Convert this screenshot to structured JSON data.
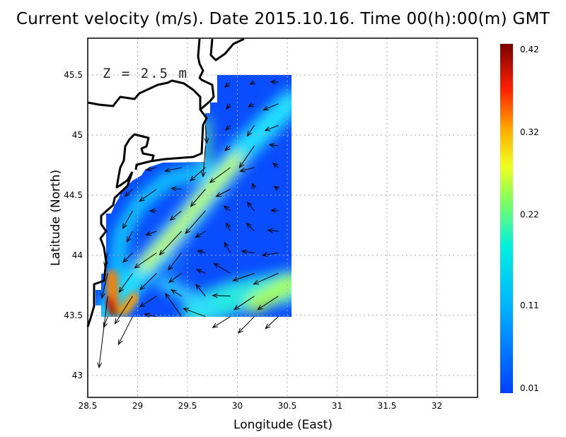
{
  "chart_data": {
    "type": "vector-field-heatmap",
    "title": "Current velocity (m/s). Date 2015.10.16. Time 00(h):00(m) GMT",
    "annotation": "Z = 2.5 m",
    "xlabel": "Longitude (East)",
    "ylabel": "Latitude (North)",
    "xlim": [
      28.5,
      32.4
    ],
    "ylim": [
      42.8,
      45.8
    ],
    "x_ticks": [
      "28.5",
      "29",
      "29.5",
      "30",
      "30.5",
      "31",
      "31.5",
      "32"
    ],
    "y_ticks": [
      "43",
      "43.5",
      "44",
      "44.5",
      "45",
      "45.5"
    ],
    "grid": true,
    "colorbar": {
      "ticks": [
        "0.42",
        "0.32",
        "0.22",
        "0.11",
        "0.01"
      ],
      "range": [
        0.01,
        0.42
      ],
      "colormap": [
        "#0040ff",
        "#00c8ff",
        "#00ffd0",
        "#c8ff30",
        "#ffe000",
        "#ff7000",
        "#ff1000",
        "#8b0000"
      ]
    },
    "vectors_lon_lat_dlon_dlat": [
      [
        29.93,
        45.44,
        -0.054,
        -0.043
      ],
      [
        30.17,
        45.44,
        -0.043,
        -0.016
      ],
      [
        30.41,
        45.44,
        -0.076,
        0.004
      ],
      [
        29.93,
        45.26,
        -0.04,
        -0.043
      ],
      [
        30.17,
        45.26,
        -0.059,
        -0.024
      ],
      [
        30.41,
        45.26,
        -0.147,
        -0.051
      ],
      [
        29.68,
        45.08,
        0.014,
        -0.147
      ],
      [
        29.93,
        45.08,
        -0.047,
        -0.039
      ],
      [
        30.17,
        45.08,
        -0.071,
        -0.088
      ],
      [
        30.41,
        45.08,
        -0.132,
        -0.043
      ],
      [
        29.68,
        44.91,
        -0.024,
        -0.255
      ],
      [
        29.93,
        44.91,
        -0.054,
        -0.039
      ],
      [
        30.17,
        44.91,
        -0.149,
        -0.18
      ],
      [
        30.41,
        44.91,
        -0.087,
        0.01
      ],
      [
        29.19,
        44.73,
        -0.102,
        -0.02
      ],
      [
        29.44,
        44.73,
        -0.165,
        -0.029
      ],
      [
        29.68,
        44.73,
        -0.151,
        -0.11
      ],
      [
        29.93,
        44.73,
        -0.206,
        -0.125
      ],
      [
        30.17,
        44.73,
        -0.142,
        -0.031
      ],
      [
        30.41,
        44.73,
        -0.052,
        0.037
      ],
      [
        28.95,
        44.55,
        -0.076,
        -0.059
      ],
      [
        29.19,
        44.55,
        -0.17,
        -0.1
      ],
      [
        29.44,
        44.55,
        -0.102,
        0.006
      ],
      [
        29.68,
        44.55,
        -0.147,
        -0.143
      ],
      [
        29.93,
        44.55,
        -0.142,
        -0.061
      ],
      [
        30.17,
        44.55,
        -0.019,
        0.047
      ],
      [
        30.41,
        44.55,
        -0.04,
        0.024
      ],
      [
        28.95,
        44.37,
        -0.099,
        -0.147
      ],
      [
        29.19,
        44.37,
        -0.064,
        0.0
      ],
      [
        29.44,
        44.37,
        -0.113,
        -0.078
      ],
      [
        29.68,
        44.37,
        -0.199,
        -0.188
      ],
      [
        29.93,
        44.37,
        -0.064,
        0.039
      ],
      [
        30.17,
        44.37,
        -0.071,
        0.071
      ],
      [
        30.41,
        44.37,
        -0.071,
        0.004
      ],
      [
        28.95,
        44.2,
        -0.057,
        -0.088
      ],
      [
        29.19,
        44.2,
        -0.106,
        -0.031
      ],
      [
        29.44,
        44.2,
        -0.22,
        -0.196
      ],
      [
        29.68,
        44.2,
        -0.099,
        -0.051
      ],
      [
        29.93,
        44.2,
        -0.04,
        0.069
      ],
      [
        30.17,
        44.2,
        -0.078,
        0.069
      ],
      [
        30.41,
        44.2,
        -0.104,
        0.008
      ],
      [
        28.7,
        44.02,
        -0.028,
        -0.118
      ],
      [
        28.95,
        44.02,
        -0.095,
        -0.078
      ],
      [
        29.19,
        44.02,
        -0.22,
        -0.125
      ],
      [
        29.44,
        44.02,
        -0.132,
        -0.143
      ],
      [
        29.68,
        44.02,
        -0.076,
        0.018
      ],
      [
        29.93,
        44.02,
        -0.059,
        0.086
      ],
      [
        30.17,
        44.02,
        -0.123,
        0.014
      ],
      [
        30.41,
        44.02,
        -0.158,
        -0.02
      ],
      [
        28.7,
        43.85,
        -0.059,
        -0.206
      ],
      [
        28.95,
        43.85,
        -0.135,
        -0.157
      ],
      [
        29.19,
        43.85,
        -0.165,
        -0.137
      ],
      [
        29.44,
        43.85,
        -0.125,
        -0.075
      ],
      [
        29.68,
        43.85,
        -0.087,
        0.031
      ],
      [
        29.93,
        43.85,
        -0.165,
        0.082
      ],
      [
        30.17,
        43.85,
        -0.213,
        -0.061
      ],
      [
        30.41,
        43.85,
        -0.246,
        -0.09
      ],
      [
        28.7,
        43.66,
        -0.087,
        -0.594
      ],
      [
        28.95,
        43.66,
        -0.177,
        -0.229
      ],
      [
        29.19,
        43.66,
        -0.165,
        -0.088
      ],
      [
        29.44,
        43.66,
        -0.102,
        0.053
      ],
      [
        29.68,
        43.66,
        -0.095,
        0.098
      ],
      [
        29.93,
        43.66,
        -0.177,
        0.006
      ],
      [
        30.17,
        43.66,
        -0.201,
        -0.112
      ],
      [
        30.41,
        43.66,
        -0.206,
        -0.112
      ],
      [
        28.7,
        43.49,
        -0.04,
        -0.09
      ],
      [
        28.95,
        43.49,
        -0.142,
        -0.231
      ],
      [
        29.19,
        43.49,
        -0.118,
        0.02
      ],
      [
        29.44,
        43.49,
        -0.161,
        0.192
      ],
      [
        29.68,
        43.49,
        -0.22,
        0.067
      ],
      [
        29.93,
        43.49,
        -0.177,
        -0.092
      ],
      [
        30.17,
        43.49,
        -0.161,
        -0.137
      ],
      [
        30.41,
        43.49,
        -0.128,
        -0.1
      ]
    ]
  }
}
